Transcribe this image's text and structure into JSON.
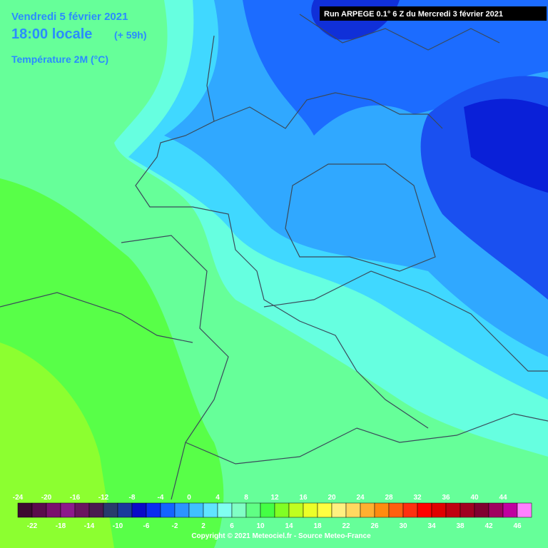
{
  "header": {
    "date": "Vendredi 5 février 2021",
    "time": "18:00 locale",
    "lead": "(+ 59h)",
    "parameter": "Température 2M (°C)"
  },
  "run_info": "Run ARPEGE 0.1° 6 Z du Mercredi 3 février 2021",
  "legend": {
    "top_labels": [
      -24,
      -20,
      -16,
      -12,
      -8,
      -4,
      0,
      4,
      8,
      12,
      16,
      20,
      24,
      28,
      32,
      36,
      40,
      44
    ],
    "bottom_labels": [
      -22,
      -18,
      -14,
      -10,
      -6,
      -2,
      2,
      6,
      10,
      14,
      18,
      22,
      26,
      30,
      34,
      38,
      42,
      46
    ],
    "colors": [
      "#3c0a30",
      "#5a0c4c",
      "#7a106e",
      "#8c1a8c",
      "#6a1460",
      "#4a1c50",
      "#283c6c",
      "#1a3a9c",
      "#0a0ac8",
      "#0a2cf0",
      "#1464ff",
      "#2c94ff",
      "#40c0ff",
      "#60e4ff",
      "#80fff0",
      "#80ffc4",
      "#60ff84",
      "#44ff44",
      "#80ff24",
      "#c0ff20",
      "#ecff28",
      "#ffff40",
      "#fff080",
      "#ffd860",
      "#ffb030",
      "#ff8c10",
      "#ff6010",
      "#ff3010",
      "#ff0000",
      "#e00000",
      "#c00010",
      "#a00020",
      "#800030",
      "#a00060",
      "#c000a0",
      "#ff80ff"
    ]
  },
  "copyright": "Copyright © 2021 Meteociel.fr - Source Meteo-France"
}
